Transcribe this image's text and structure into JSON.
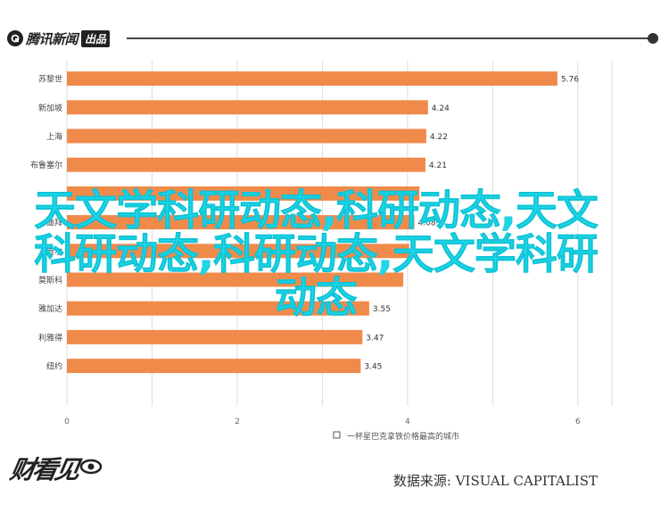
{
  "header": {
    "logo_text": "腾讯新闻",
    "logo_badge": "出品"
  },
  "watermark_text": "天文学科研动态,科研动态,天文科研动态,科研动态,天文学科研动态",
  "footer": {
    "brand_text": "财看见",
    "source": "数据来源: VISUAL CAPITALIST"
  },
  "colors": {
    "bar": "#f08a4b",
    "grid": "#dddddd",
    "watermark": "#1fd6e8"
  },
  "chart_data": {
    "type": "bar",
    "orientation": "horizontal",
    "categories": [
      "苏黎世",
      "新加坡",
      "上海",
      "布鲁塞尔",
      "",
      "迪拜",
      "首尔",
      "莫斯科",
      "雅加达",
      "利雅得",
      "纽约"
    ],
    "values": [
      5.76,
      4.24,
      4.22,
      4.21,
      null,
      4.08,
      null,
      null,
      3.55,
      3.47,
      3.45
    ],
    "value_labels": [
      "5.76",
      "4.24",
      "4.22",
      "4.21",
      "",
      "4.08",
      "",
      "",
      "3.55",
      "3.47",
      "3.45"
    ],
    "xlim": [
      0,
      6.4
    ],
    "xticks": [
      "0",
      "2",
      "4",
      "6"
    ],
    "xlabel": "一杯星巴克拿铁价格最高的城市",
    "grid": true
  }
}
